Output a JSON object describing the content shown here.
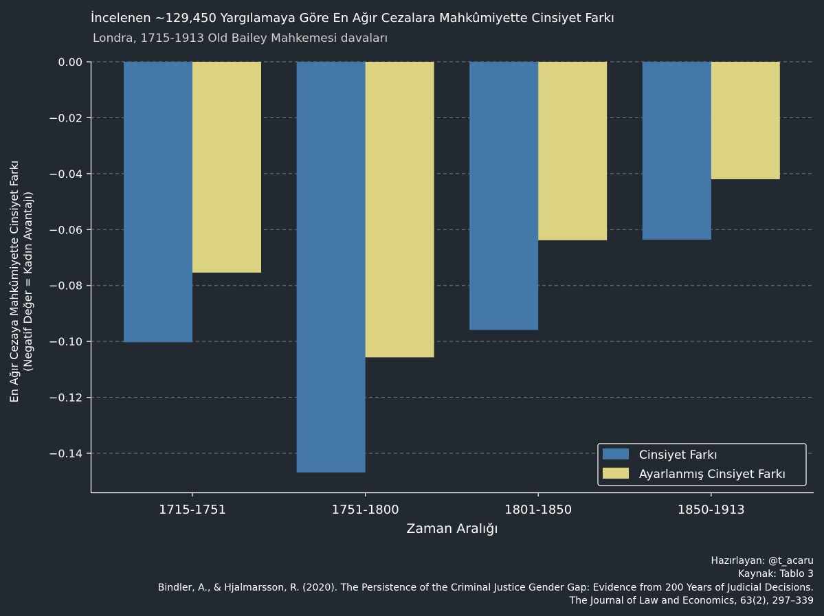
{
  "chart_data": {
    "type": "bar",
    "title": "İncelenen ~129,450 Yargılamaya Göre En Ağır Cezalara Mahkûmiyette Cinsiyet Farkı",
    "subtitle": "Londra, 1715-1913 Old Bailey Mahkemesi davaları",
    "xlabel": "Zaman Aralığı",
    "ylabel_line1": "En Ağır Cezaya Mahkûmiyette Cinsiyet Farkı",
    "ylabel_line2": "(Negatif Değer = Kadın Avantajı)",
    "categories": [
      "1715-1751",
      "1751-1800",
      "1801-1850",
      "1850-1913"
    ],
    "series": [
      {
        "name": "Cinsiyet Farkı",
        "color": "#4478a8",
        "values": [
          -0.1003,
          -0.1469,
          -0.0959,
          -0.0636
        ]
      },
      {
        "name": "Ayarlanmış Cinsiyet Farkı",
        "color": "#dbd282",
        "values": [
          -0.0754,
          -0.1057,
          -0.0638,
          -0.042
        ]
      }
    ],
    "ylim": [
      -0.154,
      0.0
    ],
    "yticks": [
      0.0,
      -0.02,
      -0.04,
      -0.06,
      -0.08,
      -0.1,
      -0.12,
      -0.14
    ],
    "ytick_labels": [
      "0.00",
      "−0.02",
      "−0.04",
      "−0.06",
      "−0.08",
      "−0.10",
      "−0.12",
      "−0.14"
    ],
    "grid": true,
    "legend_position": "bottom-right"
  },
  "footer": {
    "line1": "Hazırlayan: @t_acaru",
    "line2": "Kaynak: Tablo 3",
    "line3": "Bindler, A., & Hjalmarsson, R. (2020). The Persistence of the Criminal Justice Gender Gap: Evidence from 200 Years of Judicial Decisions.",
    "line4": "The Journal of Law and Economics, 63(2), 297–339"
  },
  "colors": {
    "background": "#232930",
    "axis": "#ffffff",
    "grid": "#8a9099"
  }
}
